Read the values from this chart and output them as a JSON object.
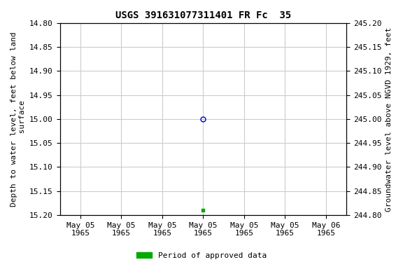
{
  "title": "USGS 391631077311401 FR Fc  35",
  "ylabel_left": "Depth to water level, feet below land\n surface",
  "ylabel_right": "Groundwater level above NGVD 1929, feet",
  "ylim_left": [
    15.2,
    14.8
  ],
  "ylim_right": [
    244.8,
    245.2
  ],
  "yticks_left": [
    14.8,
    14.85,
    14.9,
    14.95,
    15.0,
    15.05,
    15.1,
    15.15,
    15.2
  ],
  "yticks_right": [
    245.2,
    245.15,
    245.1,
    245.05,
    245.0,
    244.95,
    244.9,
    244.85,
    244.8
  ],
  "xlim": [
    -0.5,
    6.5
  ],
  "xtick_positions": [
    0,
    1,
    2,
    3,
    4,
    5,
    6
  ],
  "xtick_labels": [
    "May 05\n1965",
    "May 05\n1965",
    "May 05\n1965",
    "May 05\n1965",
    "May 05\n1965",
    "May 05\n1965",
    "May 06\n1965"
  ],
  "point_x": 3,
  "point_y": 15.0,
  "point_color": "#0000cc",
  "point_marker": "o",
  "point_facecolor": "none",
  "point_markersize": 5,
  "green_point_x": 3,
  "green_point_y": 15.19,
  "green_point_color": "#00aa00",
  "green_point_marker": "s",
  "green_point_markersize": 3,
  "legend_label": "Period of approved data",
  "legend_color": "#00aa00",
  "grid_color": "#cccccc",
  "bg_color": "#ffffff",
  "font_family": "monospace",
  "title_fontsize": 10,
  "label_fontsize": 8,
  "tick_fontsize": 8
}
